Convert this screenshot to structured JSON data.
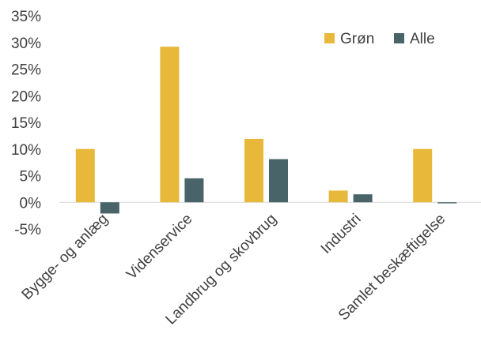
{
  "chart_data": {
    "type": "bar",
    "categories": [
      "Bygge- og anlæg",
      "Videnservice",
      "Landbrug og skovbrug",
      "Industri",
      "Samlet beskæftigelse"
    ],
    "series": [
      {
        "name": "Grøn",
        "values": [
          10.0,
          29.2,
          11.9,
          2.2,
          10.0
        ],
        "color": "#E8B83A"
      },
      {
        "name": "Alle",
        "values": [
          -2.1,
          4.5,
          8.1,
          1.5,
          -0.2
        ],
        "color": "#486468"
      }
    ],
    "ylim": [
      -5,
      35
    ],
    "yticks": [
      -5,
      0,
      5,
      10,
      15,
      20,
      25,
      30,
      35
    ],
    "ytick_labels": [
      "-5%",
      "0%",
      "5%",
      "10%",
      "15%",
      "20%",
      "25%",
      "30%",
      "35%"
    ],
    "title": "",
    "xlabel": "",
    "ylabel": "",
    "grid": false,
    "legend_position": "top-right"
  }
}
